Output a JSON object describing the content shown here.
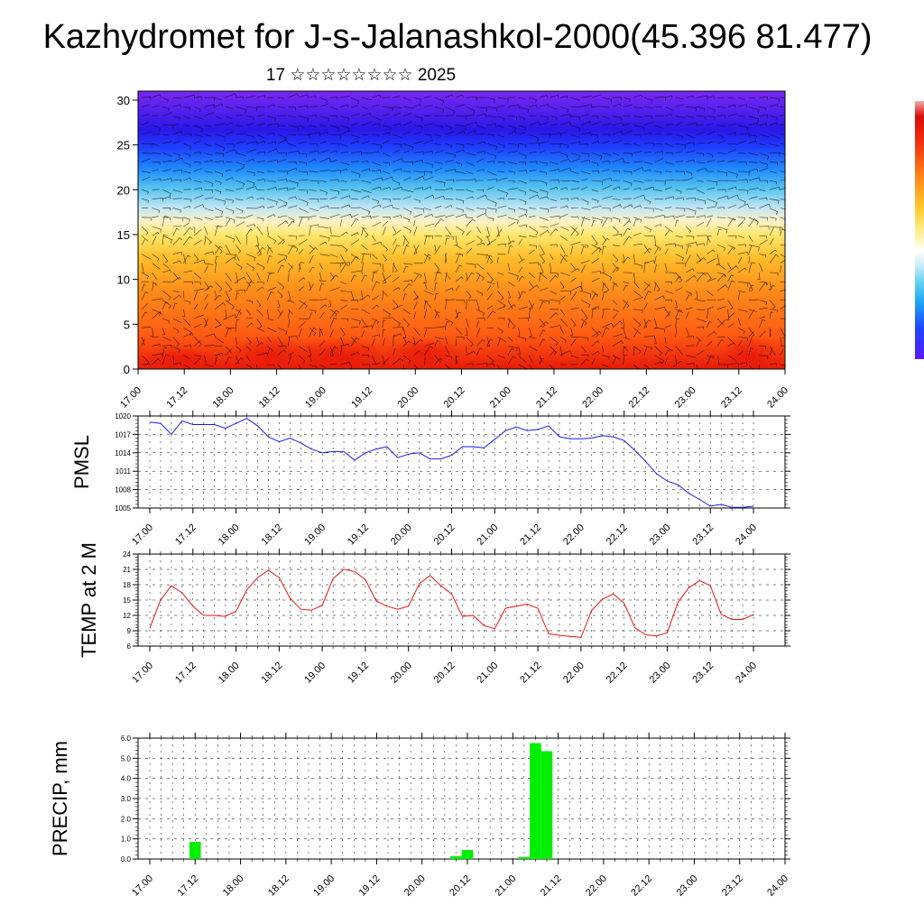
{
  "header": {
    "title": "Kazhydromet for J-s-Jalanashkol-2000(45.396 81.477)",
    "date_line": "17 ☆☆☆☆☆☆☆☆ 2025"
  },
  "colors": {
    "pmsl_line": "#1a1aee",
    "temp_line": "#ee1111",
    "precip_bar": "#00ee00",
    "colorbar": [
      "#5a18ff",
      "#3a2aff",
      "#1e46ff",
      "#1f7dff",
      "#1fb0f5",
      "#66d3f5",
      "#c4ecf7",
      "#fff7c0",
      "#ffe04d",
      "#ffbd2a",
      "#ff8a1a",
      "#ff5c10",
      "#f23010",
      "#d80c0c",
      "#f1a9a9"
    ]
  },
  "chart_data": [
    {
      "id": "cross-section",
      "type": "heatmap",
      "title": "",
      "xlabel": "",
      "ylabel": "",
      "x_ticks": [
        "17.00",
        "17.12",
        "18.00",
        "18.12",
        "19.00",
        "19.12",
        "20.00",
        "20.12",
        "21.00",
        "21.12",
        "22.00",
        "22.12",
        "23.00",
        "23.12",
        "24.00"
      ],
      "y_ticks": [
        "0",
        "5",
        "10",
        "15",
        "20",
        "25",
        "30"
      ],
      "ylim": [
        0,
        31
      ],
      "xlim": [
        0,
        14
      ]
    },
    {
      "id": "pmsl",
      "type": "line",
      "ylabel": "PMSL",
      "x_ticks": [
        "17.00",
        "17.12",
        "18.00",
        "18.12",
        "19.00",
        "19.12",
        "20.00",
        "20.12",
        "21.00",
        "21.12",
        "22.00",
        "22.12",
        "23.00",
        "23.12",
        "24.00"
      ],
      "y_ticks": [
        "1005",
        "1008",
        "1011",
        "1014",
        "1017",
        "1020"
      ],
      "ylim": [
        1005,
        1020
      ],
      "grid": true,
      "values": [
        1019.0,
        1018.8,
        1017.0,
        1019.2,
        1018.6,
        1018.6,
        1018.6,
        1018.0,
        1018.8,
        1019.6,
        1018.4,
        1016.6,
        1015.8,
        1016.4,
        1015.6,
        1014.6,
        1014.0,
        1014.2,
        1014.2,
        1012.8,
        1014.0,
        1014.6,
        1015.0,
        1013.2,
        1013.8,
        1014.0,
        1013.0,
        1013.0,
        1013.6,
        1015.0,
        1015.0,
        1014.8,
        1016.2,
        1017.6,
        1018.2,
        1017.6,
        1017.8,
        1018.4,
        1016.6,
        1016.3,
        1016.3,
        1016.4,
        1016.8,
        1016.6,
        1016.0,
        1014.4,
        1012.6,
        1010.6,
        1009.4,
        1008.8,
        1007.4,
        1006.4,
        1005.3,
        1005.6,
        1005.1,
        1005.1,
        1005.3
      ]
    },
    {
      "id": "temp",
      "type": "line",
      "ylabel": "TEMP at 2 M",
      "x_ticks": [
        "17.00",
        "17.12",
        "18.00",
        "18.12",
        "19.00",
        "19.12",
        "20.00",
        "20.12",
        "21.00",
        "21.12",
        "22.00",
        "22.12",
        "23.00",
        "23.12",
        "24.00"
      ],
      "y_ticks": [
        "6",
        "9",
        "12",
        "15",
        "18",
        "21",
        "24"
      ],
      "ylim": [
        6,
        24
      ],
      "grid": true,
      "values": [
        9.5,
        15.0,
        17.8,
        16.4,
        13.8,
        12.0,
        12.0,
        11.8,
        12.8,
        17.0,
        19.4,
        20.8,
        19.4,
        15.4,
        13.2,
        13.0,
        14.0,
        19.2,
        21.0,
        20.6,
        19.0,
        14.8,
        13.8,
        13.2,
        13.8,
        18.2,
        19.8,
        17.8,
        16.2,
        11.8,
        12.0,
        10.0,
        9.4,
        13.4,
        13.8,
        14.2,
        13.4,
        8.4,
        8.1,
        7.9,
        7.7,
        13.0,
        15.2,
        16.2,
        14.4,
        9.6,
        8.2,
        8.0,
        8.6,
        14.6,
        17.4,
        18.8,
        17.8,
        12.2,
        11.2,
        11.2,
        12.2
      ]
    },
    {
      "id": "precip",
      "type": "bar",
      "ylabel": "PRECIP, mm",
      "x_ticks": [
        "17.00",
        "17.12",
        "18.00",
        "18.12",
        "19.00",
        "19.12",
        "20.00",
        "20.12",
        "21.00",
        "21.12",
        "22.00",
        "22.12",
        "23.00",
        "23.12",
        "24.00"
      ],
      "y_ticks": [
        "0.0",
        "1.0",
        "2.0",
        "3.0",
        "4.0",
        "5.0",
        "6.0"
      ],
      "ylim": [
        0,
        6
      ],
      "grid": true,
      "bars": [
        {
          "x": 4,
          "value": 0.85
        },
        {
          "x": 27,
          "value": 0.15
        },
        {
          "x": 28,
          "value": 0.45
        },
        {
          "x": 33,
          "value": 0.1
        },
        {
          "x": 34,
          "value": 5.75
        },
        {
          "x": 35,
          "value": 5.35
        }
      ]
    }
  ]
}
